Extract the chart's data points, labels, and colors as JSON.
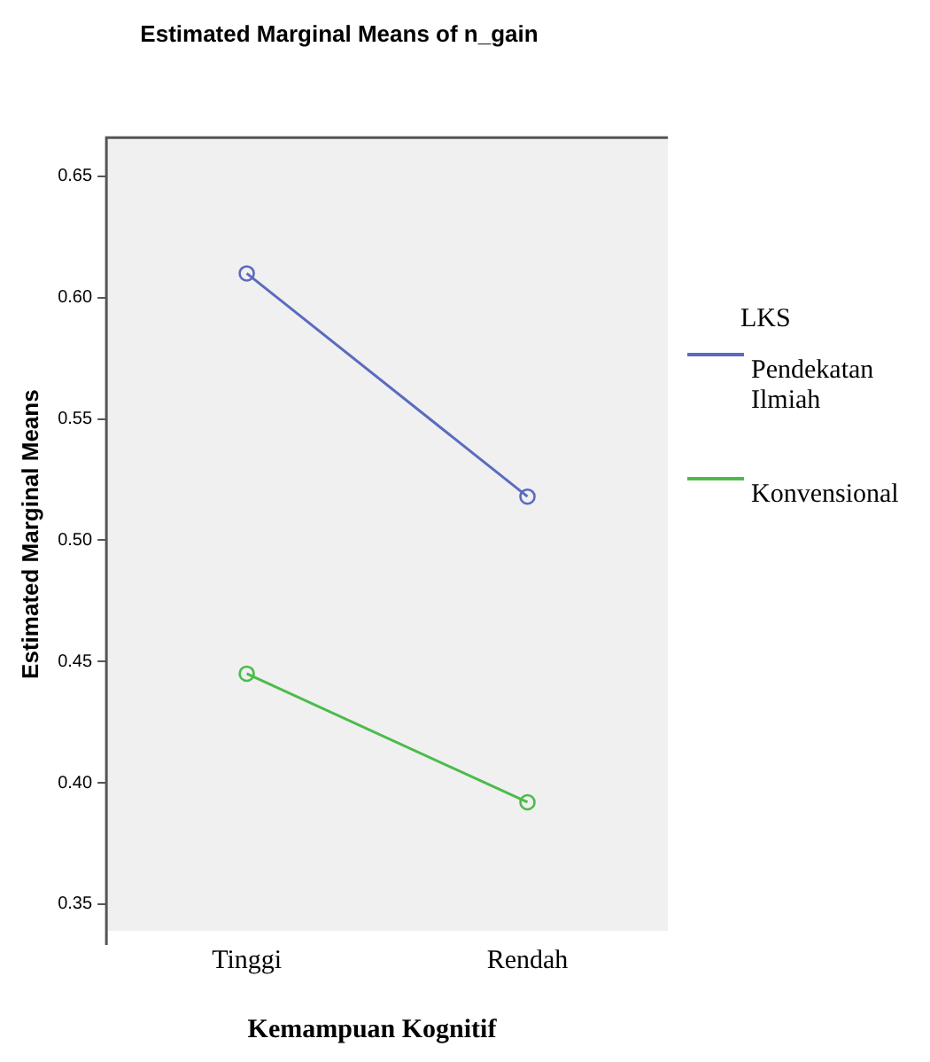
{
  "chart_data": {
    "type": "line",
    "title": "Estimated Marginal Means of n_gain",
    "xlabel": "Kemampuan Kognitif",
    "ylabel": "Estimated Marginal Means",
    "legend_title": "LKS",
    "categories": [
      "Tinggi",
      "Rendah"
    ],
    "series": [
      {
        "name": "Pendekatan Ilmiah",
        "color": "#5b6bbf",
        "values": [
          0.61,
          0.518
        ]
      },
      {
        "name": "Konvensional",
        "color": "#4cbb4c",
        "values": [
          0.445,
          0.392
        ]
      }
    ],
    "ylim": [
      0.339,
      0.666
    ],
    "yticks": [
      {
        "value": 0.35,
        "label": "0.35"
      },
      {
        "value": 0.4,
        "label": "0.40"
      },
      {
        "value": 0.45,
        "label": "0.45"
      },
      {
        "value": 0.5,
        "label": "0.50"
      },
      {
        "value": 0.55,
        "label": "0.55"
      },
      {
        "value": 0.6,
        "label": "0.60"
      },
      {
        "value": 0.65,
        "label": "0.65"
      }
    ],
    "grid": false,
    "legend": "right",
    "marker": "circle",
    "line_style": "solid"
  }
}
